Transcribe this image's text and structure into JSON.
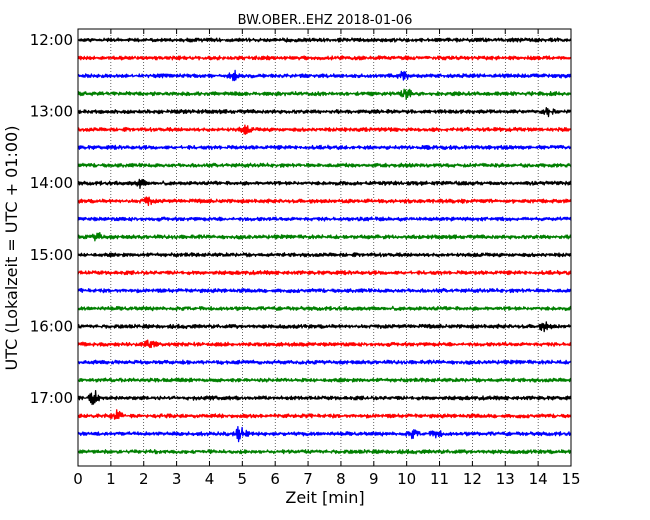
{
  "chart_data": {
    "type": "line",
    "title": "BW.OBER..EHZ 2018-01-06",
    "xlabel": "Zeit  [min]",
    "ylabel": "UTC (Lokalzeit = UTC + 01:00)",
    "xlim": [
      0,
      15
    ],
    "x_ticks": [
      "0",
      "1",
      "2",
      "3",
      "4",
      "5",
      "6",
      "7",
      "8",
      "9",
      "10",
      "11",
      "12",
      "13",
      "14",
      "15"
    ],
    "y_ticks": [
      "12:00",
      "13:00",
      "14:00",
      "15:00",
      "16:00",
      "17:00"
    ],
    "grid": "vertical-dotted",
    "trace_colors": [
      "#000000",
      "#ff0000",
      "#0000ff",
      "#007f00"
    ],
    "traces": [
      "12:00",
      "12:15",
      "12:30",
      "12:45",
      "13:00",
      "13:15",
      "13:30",
      "13:45",
      "14:00",
      "14:15",
      "14:30",
      "14:45",
      "15:00",
      "15:15",
      "15:30",
      "15:45",
      "16:00",
      "16:15",
      "16:30",
      "16:45",
      "17:00",
      "17:15",
      "17:30",
      "17:45"
    ],
    "events": [
      {
        "trace": "12:30",
        "minute": 4.75,
        "amp": 1.8
      },
      {
        "trace": "12:30",
        "minute": 9.9,
        "amp": 1.8
      },
      {
        "trace": "12:45",
        "minute": 10.0,
        "amp": 2.0
      },
      {
        "trace": "13:00",
        "minute": 14.3,
        "amp": 1.8
      },
      {
        "trace": "13:15",
        "minute": 5.1,
        "amp": 1.6
      },
      {
        "trace": "14:00",
        "minute": 1.9,
        "amp": 1.8
      },
      {
        "trace": "14:15",
        "minute": 2.1,
        "amp": 1.6
      },
      {
        "trace": "14:45",
        "minute": 0.6,
        "amp": 1.7
      },
      {
        "trace": "16:00",
        "minute": 14.2,
        "amp": 1.8
      },
      {
        "trace": "16:15",
        "minute": 2.2,
        "amp": 2.2
      },
      {
        "trace": "17:00",
        "minute": 0.5,
        "amp": 3.2
      },
      {
        "trace": "17:15",
        "minute": 1.2,
        "amp": 2.2
      },
      {
        "trace": "17:30",
        "minute": 4.95,
        "amp": 4.5
      },
      {
        "trace": "17:30",
        "minute": 10.2,
        "amp": 1.8
      },
      {
        "trace": "17:30",
        "minute": 10.9,
        "amp": 1.6
      }
    ]
  }
}
